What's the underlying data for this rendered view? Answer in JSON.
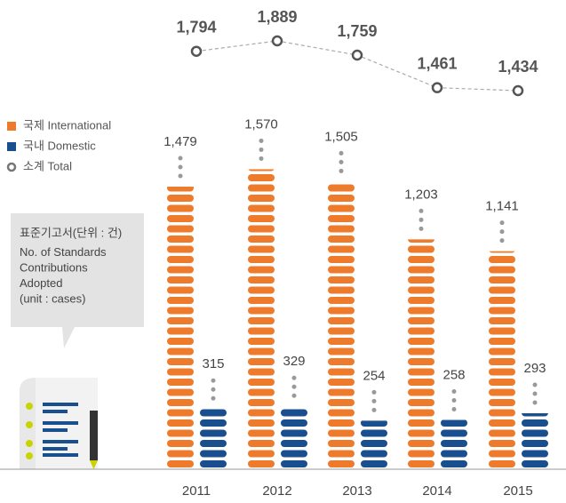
{
  "chart_data": {
    "type": "bar",
    "categories": [
      "2011",
      "2012",
      "2013",
      "2014",
      "2015"
    ],
    "series": [
      {
        "name": "국제 International",
        "color": "#ee7b2c",
        "values": [
          1479,
          1570,
          1505,
          1203,
          1141
        ],
        "value_labels": [
          "1,479",
          "1,570",
          "1,505",
          "1,203",
          "1,141"
        ]
      },
      {
        "name": "국내 Domestic",
        "color": "#1a4f8f",
        "values": [
          315,
          329,
          254,
          258,
          293
        ]
      },
      {
        "name": "소계 Total",
        "color": "#777777",
        "type": "line",
        "values": [
          1794,
          1889,
          1759,
          1461,
          1434
        ],
        "value_labels": [
          "1,794",
          "1,889",
          "1,759",
          "1,461",
          "1,434"
        ]
      }
    ],
    "note": [
      "표준기고서(단위 : 건)",
      "No. of Standards",
      "Contributions",
      "Adopted",
      "(unit : cases)"
    ]
  }
}
